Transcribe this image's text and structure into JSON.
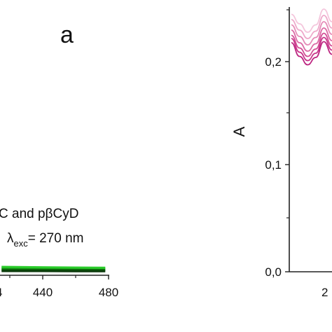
{
  "chart_data": [
    {
      "type": "line",
      "panel_label": "a",
      "xlim": [
        415,
        480
      ],
      "x_ticks": [
        "440",
        "480"
      ],
      "x_tick_partial": "4",
      "annotation_line1": "C and pβCyD",
      "annotation_line2_pre": "λ",
      "annotation_line2_sub": "exc",
      "annotation_line2_post": "= 270 nm",
      "series": [
        {
          "color": "#1aa81a",
          "x": [
            415,
            440,
            460,
            478
          ],
          "y": [
            0.05,
            0.048,
            0.047,
            0.046
          ]
        },
        {
          "color": "#2bcc2b",
          "x": [
            415,
            440,
            460,
            478
          ],
          "y": [
            0.06,
            0.057,
            0.055,
            0.054
          ]
        },
        {
          "color": "#0b6b0b",
          "x": [
            415,
            440,
            460,
            478
          ],
          "y": [
            0.04,
            0.039,
            0.038,
            0.037
          ]
        },
        {
          "color": "#0a3a0a",
          "x": [
            415,
            440,
            460,
            478
          ],
          "y": [
            0.03,
            0.03,
            0.029,
            0.029
          ]
        }
      ]
    },
    {
      "type": "line",
      "ylabel": "A",
      "ylim": [
        0,
        0.25
      ],
      "y_ticks": [
        "0,0",
        "0,1",
        "0,2"
      ],
      "x_tick_partial": "2",
      "series": [
        {
          "color": "#f4c6dc",
          "x": [
            0,
            0.2,
            0.4,
            0.6,
            0.8,
            1
          ],
          "y": [
            0.245,
            0.236,
            0.228,
            0.235,
            0.25,
            0.238
          ]
        },
        {
          "color": "#eeaacb",
          "x": [
            0,
            0.2,
            0.4,
            0.6,
            0.8,
            1
          ],
          "y": [
            0.24,
            0.23,
            0.222,
            0.229,
            0.244,
            0.232
          ]
        },
        {
          "color": "#e58cb8",
          "x": [
            0,
            0.2,
            0.4,
            0.6,
            0.8,
            1
          ],
          "y": [
            0.235,
            0.224,
            0.216,
            0.223,
            0.238,
            0.226
          ]
        },
        {
          "color": "#dc6aa5",
          "x": [
            0,
            0.2,
            0.4,
            0.6,
            0.8,
            1
          ],
          "y": [
            0.23,
            0.218,
            0.21,
            0.217,
            0.232,
            0.22
          ]
        },
        {
          "color": "#d24e95",
          "x": [
            0,
            0.2,
            0.4,
            0.6,
            0.8,
            1
          ],
          "y": [
            0.225,
            0.213,
            0.205,
            0.212,
            0.227,
            0.215
          ]
        },
        {
          "color": "#c8358a",
          "x": [
            0,
            0.2,
            0.4,
            0.6,
            0.8,
            1
          ],
          "y": [
            0.222,
            0.209,
            0.201,
            0.208,
            0.223,
            0.211
          ]
        },
        {
          "color": "#bc2480",
          "x": [
            0,
            0.2,
            0.4,
            0.6,
            0.8,
            1
          ],
          "y": [
            0.218,
            0.205,
            0.197,
            0.204,
            0.219,
            0.207
          ]
        }
      ]
    }
  ]
}
